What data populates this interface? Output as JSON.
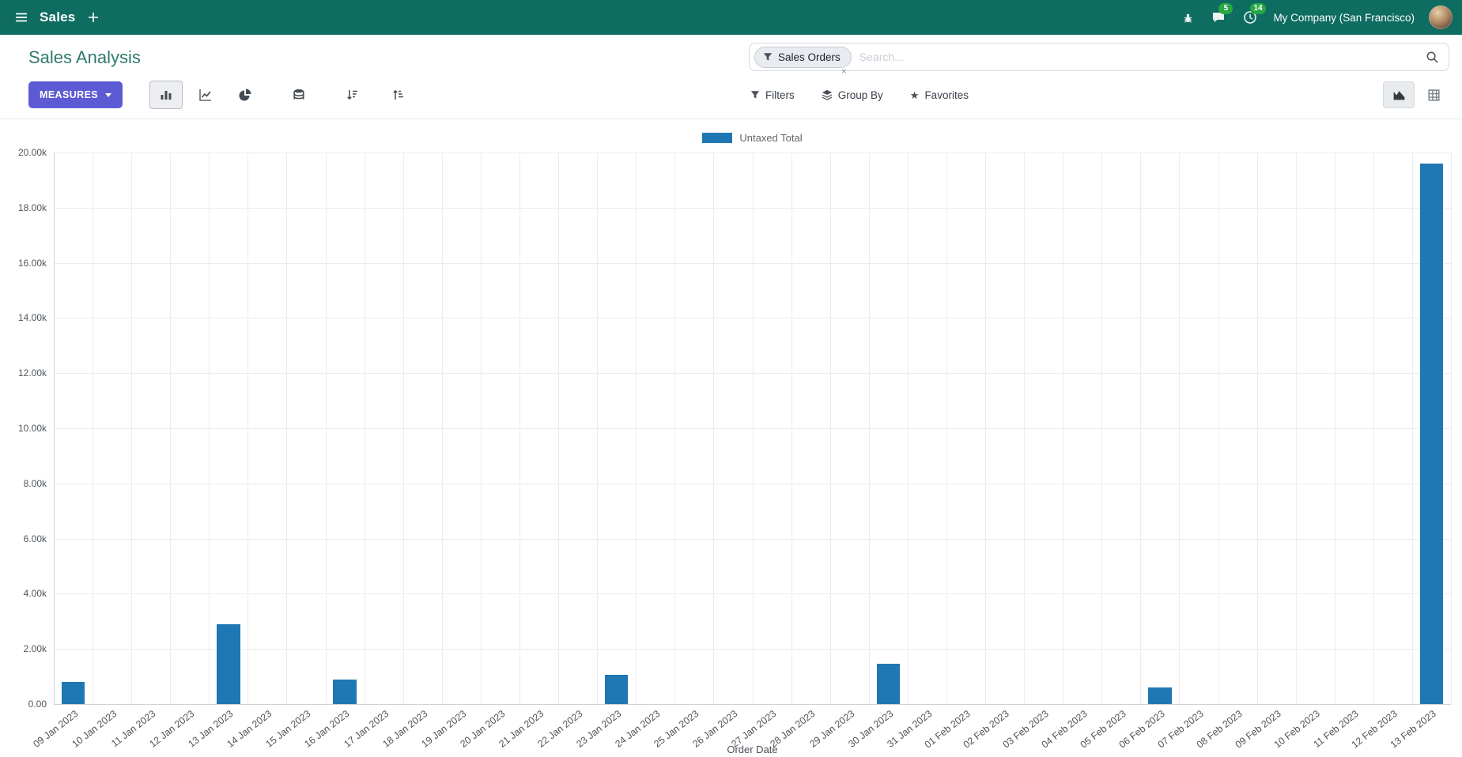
{
  "colors": {
    "topbar-bg": "#0e6c61",
    "primary": "#5c5bd3",
    "badge": "#28a745",
    "title": "#2f7a6d"
  },
  "topbar": {
    "app_name": "Sales",
    "company": "My Company (San Francisco)",
    "messages_badge": "5",
    "activities_badge": "14"
  },
  "control_panel": {
    "breadcrumb": "Sales Analysis",
    "measures_label": "MEASURES",
    "search": {
      "facet": "Sales Orders",
      "placeholder": "Search..."
    },
    "filters_label": "Filters",
    "group_by_label": "Group By",
    "favorites_label": "Favorites"
  },
  "icons": {
    "menu-icon": "hamburger",
    "plus-icon": "+",
    "bug-icon": "bug",
    "messages-icon": "speech-bubble",
    "activities-icon": "clock",
    "search-icon": "magnifier",
    "filter-icon": "funnel",
    "group-by-icon": "layers",
    "favorites-icon": "★",
    "bar-chart-icon": "bars",
    "line-chart-icon": "line",
    "pie-chart-icon": "pie",
    "stacked-icon": "database",
    "sort-desc-icon": "arrow-down-bars",
    "sort-asc-icon": "arrow-up-bars",
    "graph-view-icon": "area-chart",
    "pivot-view-icon": "grid",
    "facet-remove-icon": "×",
    "caret-down-icon": "▼"
  },
  "chart_data": {
    "type": "bar",
    "legend": "Untaxed Total",
    "legend_position": "top",
    "xlabel": "Order Date",
    "ylabel": "",
    "ylim": [
      0,
      20000
    ],
    "grid": true,
    "bar_color": "#1f77b4",
    "y_ticks": [
      "0.00",
      "2.00k",
      "4.00k",
      "6.00k",
      "8.00k",
      "10.00k",
      "12.00k",
      "14.00k",
      "16.00k",
      "18.00k",
      "20.00k"
    ],
    "categories": [
      "09 Jan 2023",
      "10 Jan 2023",
      "11 Jan 2023",
      "12 Jan 2023",
      "13 Jan 2023",
      "14 Jan 2023",
      "15 Jan 2023",
      "16 Jan 2023",
      "17 Jan 2023",
      "18 Jan 2023",
      "19 Jan 2023",
      "20 Jan 2023",
      "21 Jan 2023",
      "22 Jan 2023",
      "23 Jan 2023",
      "24 Jan 2023",
      "25 Jan 2023",
      "26 Jan 2023",
      "27 Jan 2023",
      "28 Jan 2023",
      "29 Jan 2023",
      "30 Jan 2023",
      "31 Jan 2023",
      "01 Feb 2023",
      "02 Feb 2023",
      "03 Feb 2023",
      "04 Feb 2023",
      "05 Feb 2023",
      "06 Feb 2023",
      "07 Feb 2023",
      "08 Feb 2023",
      "09 Feb 2023",
      "10 Feb 2023",
      "11 Feb 2023",
      "12 Feb 2023",
      "13 Feb 2023"
    ],
    "values": [
      800,
      0,
      0,
      0,
      2900,
      0,
      0,
      900,
      0,
      0,
      0,
      0,
      0,
      0,
      1050,
      0,
      0,
      0,
      0,
      0,
      0,
      1450,
      0,
      0,
      0,
      0,
      0,
      0,
      600,
      0,
      0,
      0,
      0,
      0,
      0,
      19600
    ]
  }
}
